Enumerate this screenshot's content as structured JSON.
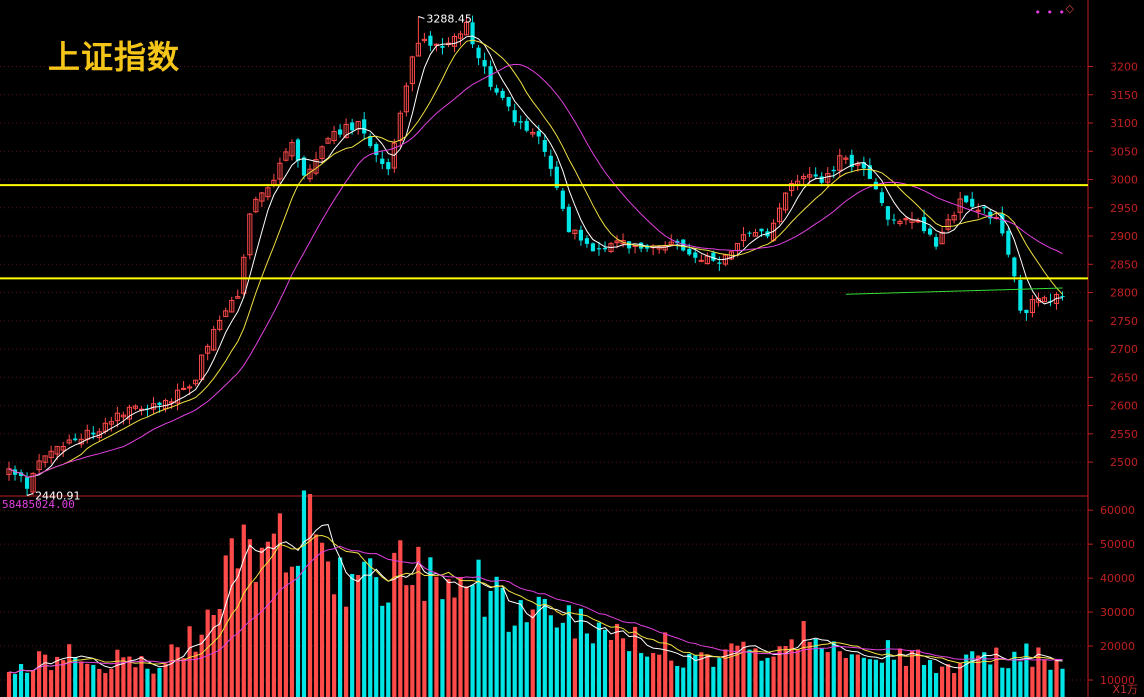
{
  "title": "上证指数",
  "volume_label": "58485024.00",
  "volume_unit": "X1万",
  "colors": {
    "up": "#ff4a4a",
    "down": "#00e5e5",
    "ma5": "#ffffff",
    "ma10": "#f0e040",
    "ma20": "#e040e0",
    "hline": "#ffff00",
    "trend": "#33dd33",
    "axis": "#c02020",
    "grid": "#5a1010",
    "bg": "#000000"
  },
  "chart_data": [
    {
      "type": "candlestick",
      "title": "上证指数",
      "ylim": [
        2440,
        3300
      ],
      "y_ticks": [
        2500,
        2550,
        2600,
        2650,
        2700,
        2750,
        2800,
        2850,
        2900,
        2950,
        3000,
        3050,
        3100,
        3150,
        3200
      ],
      "annotations": [
        {
          "label": "3288.45",
          "index": 68,
          "value": 3288.45
        },
        {
          "label": "2440.91",
          "index": 3,
          "value": 2440.91
        }
      ],
      "horizontal_lines": [
        2990,
        2825
      ],
      "trend_line": {
        "from": [
          139,
          2797
        ],
        "to": [
          175,
          2808
        ]
      },
      "anchors": [
        [
          0,
          2490
        ],
        [
          3,
          2455
        ],
        [
          6,
          2520
        ],
        [
          12,
          2545
        ],
        [
          18,
          2580
        ],
        [
          24,
          2605
        ],
        [
          30,
          2625
        ],
        [
          34,
          2740
        ],
        [
          38,
          2790
        ],
        [
          40,
          2945
        ],
        [
          44,
          3000
        ],
        [
          47,
          3060
        ],
        [
          49,
          3010
        ],
        [
          54,
          3080
        ],
        [
          58,
          3100
        ],
        [
          63,
          3010
        ],
        [
          66,
          3170
        ],
        [
          68,
          3250
        ],
        [
          72,
          3240
        ],
        [
          76,
          3270
        ],
        [
          80,
          3170
        ],
        [
          84,
          3110
        ],
        [
          88,
          3080
        ],
        [
          93,
          2915
        ],
        [
          97,
          2870
        ],
        [
          102,
          2890
        ],
        [
          107,
          2875
        ],
        [
          110,
          2895
        ],
        [
          114,
          2865
        ],
        [
          118,
          2850
        ],
        [
          122,
          2895
        ],
        [
          126,
          2905
        ],
        [
          130,
          3000
        ],
        [
          135,
          3000
        ],
        [
          138,
          3035
        ],
        [
          143,
          3010
        ],
        [
          146,
          2930
        ],
        [
          150,
          2930
        ],
        [
          154,
          2890
        ],
        [
          158,
          2960
        ],
        [
          162,
          2945
        ],
        [
          164,
          2930
        ],
        [
          166,
          2870
        ],
        [
          167,
          2820
        ],
        [
          168,
          2760
        ],
        [
          170,
          2780
        ],
        [
          172,
          2790
        ],
        [
          175,
          2800
        ]
      ]
    },
    {
      "type": "bar",
      "title": "volume",
      "ylim": [
        5000,
        63000
      ],
      "y_ticks": [
        10000,
        20000,
        30000,
        40000,
        50000,
        60000
      ],
      "anchors": [
        [
          0,
          13000
        ],
        [
          10,
          17000
        ],
        [
          20,
          15000
        ],
        [
          26,
          15000
        ],
        [
          30,
          22000
        ],
        [
          34,
          30000
        ],
        [
          38,
          50000
        ],
        [
          42,
          48000
        ],
        [
          46,
          52000
        ],
        [
          48,
          58000
        ],
        [
          50,
          54000
        ],
        [
          54,
          44000
        ],
        [
          58,
          40000
        ],
        [
          62,
          35000
        ],
        [
          66,
          43000
        ],
        [
          70,
          44000
        ],
        [
          74,
          40000
        ],
        [
          80,
          35000
        ],
        [
          85,
          30000
        ],
        [
          90,
          28000
        ],
        [
          95,
          25000
        ],
        [
          100,
          22000
        ],
        [
          105,
          22000
        ],
        [
          110,
          19000
        ],
        [
          115,
          17000
        ],
        [
          120,
          19000
        ],
        [
          125,
          18000
        ],
        [
          130,
          25000
        ],
        [
          135,
          22000
        ],
        [
          140,
          21000
        ],
        [
          145,
          18000
        ],
        [
          150,
          16000
        ],
        [
          155,
          16000
        ],
        [
          160,
          15000
        ],
        [
          165,
          17000
        ],
        [
          168,
          18000
        ],
        [
          172,
          16000
        ],
        [
          175,
          13000
        ]
      ]
    }
  ]
}
